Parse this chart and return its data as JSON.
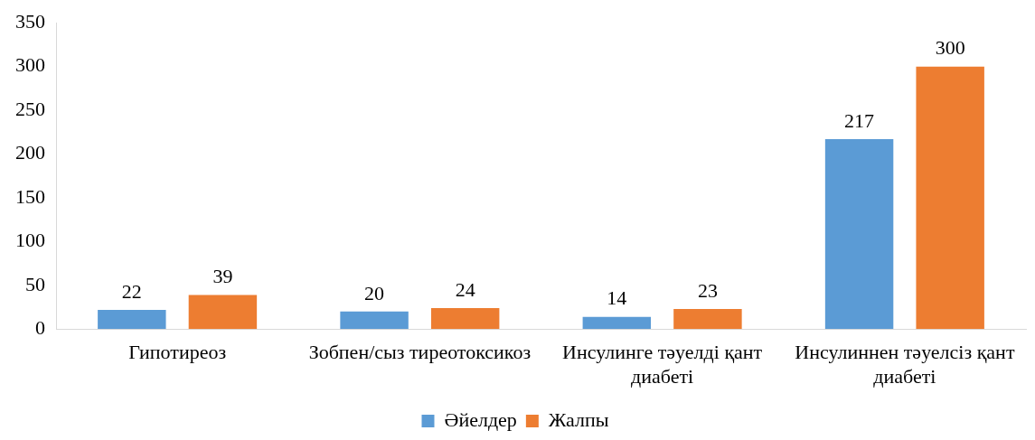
{
  "chart_data": {
    "type": "bar",
    "categories": [
      "Гипотиреоз",
      "Зобпен/сыз тиреотоксикоз",
      "Инсулинге тәуелді қант диабеті",
      "Инсулиннен тәуелсіз қант диабеті"
    ],
    "series": [
      {
        "name": "Әйелдер",
        "color": "#5b9bd5",
        "values": [
          22,
          20,
          14,
          217
        ]
      },
      {
        "name": "Жалпы",
        "color": "#ed7d31",
        "values": [
          39,
          24,
          23,
          300
        ]
      }
    ],
    "ylim": [
      0,
      350
    ],
    "yticks": [
      0,
      50,
      100,
      150,
      200,
      250,
      300,
      350
    ],
    "grid": false,
    "legend": "bottom",
    "data_labels": true
  }
}
